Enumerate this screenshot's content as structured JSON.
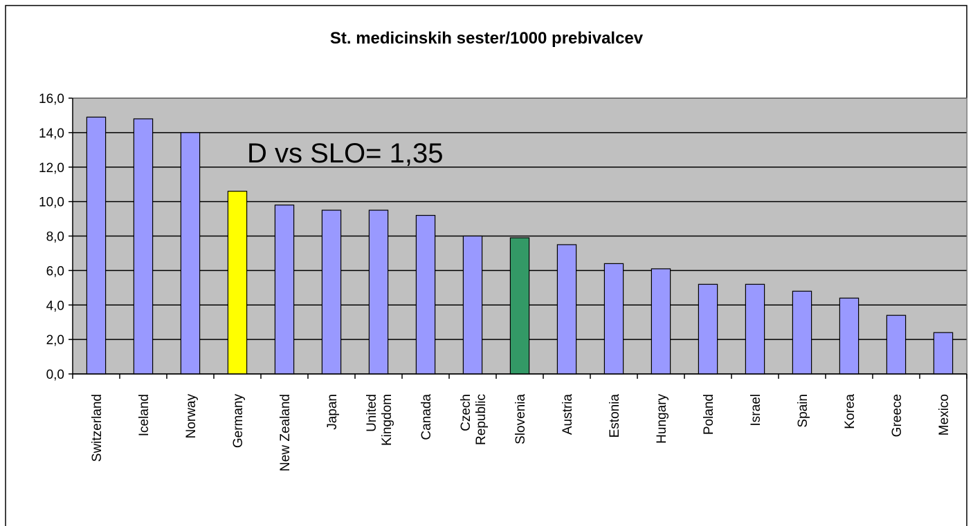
{
  "chart_data": {
    "type": "bar",
    "title": "St. medicinskih sester/1000 prebivalcev",
    "annotation": "D vs SLO= 1,35",
    "categories": [
      "Switzerland",
      "Iceland",
      "Norway",
      "Germany",
      "New Zealand",
      "Japan",
      "United\nKingdom",
      "Canada",
      "Czech\nRepublic",
      "Slovenia",
      "Austria",
      "Estonia",
      "Hungary",
      "Poland",
      "Israel",
      "Spain",
      "Korea",
      "Greece",
      "Mexico"
    ],
    "values": [
      14.9,
      14.8,
      14.0,
      10.6,
      9.8,
      9.5,
      9.5,
      9.2,
      8.0,
      7.9,
      7.5,
      6.4,
      6.1,
      5.2,
      5.2,
      4.8,
      4.4,
      3.4,
      2.4
    ],
    "colors": [
      "#9999ff",
      "#9999ff",
      "#9999ff",
      "#ffff00",
      "#9999ff",
      "#9999ff",
      "#9999ff",
      "#9999ff",
      "#9999ff",
      "#339966",
      "#9999ff",
      "#9999ff",
      "#9999ff",
      "#9999ff",
      "#9999ff",
      "#9999ff",
      "#9999ff",
      "#9999ff",
      "#9999ff"
    ],
    "ylim": [
      0,
      16
    ],
    "yticks": [
      {
        "value": 0,
        "label": "0,0"
      },
      {
        "value": 2,
        "label": "2,0"
      },
      {
        "value": 4,
        "label": "4,0"
      },
      {
        "value": 6,
        "label": "6,0"
      },
      {
        "value": 8,
        "label": "8,0"
      },
      {
        "value": 10,
        "label": "10,0"
      },
      {
        "value": 12,
        "label": "12,0"
      },
      {
        "value": 14,
        "label": "14,0"
      },
      {
        "value": 16,
        "label": "16,0"
      }
    ],
    "grid": true
  }
}
